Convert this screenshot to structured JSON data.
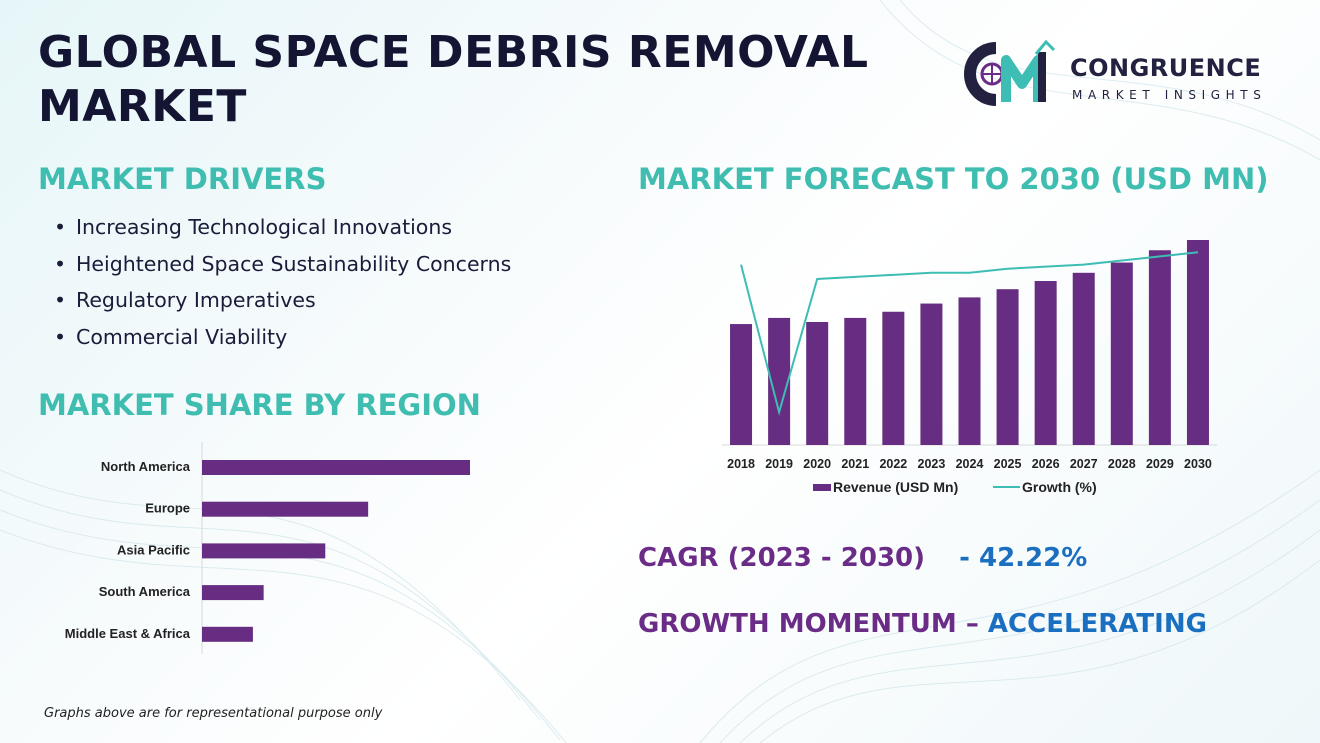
{
  "title": "GLOBAL SPACE DEBRIS REMOVAL MARKET",
  "logo": {
    "name": "CONGRUENCE",
    "subtitle": "MARKET INSIGHTS"
  },
  "drivers": {
    "heading": "MARKET DRIVERS",
    "items": [
      "Increasing Technological Innovations",
      "Heightened Space Sustainability Concerns",
      "Regulatory Imperatives",
      "Commercial Viability"
    ]
  },
  "kpis": {
    "cagr_label": "CAGR (2023 - 2030)",
    "cagr_value": "- 42.22%",
    "momentum_label": "GROWTH MOMENTUM –",
    "momentum_value": "ACCELERATING"
  },
  "footnote": "Graphs above are for representational purpose only",
  "colors": {
    "bar": "#662d82",
    "line": "#3dbdb4",
    "heading": "#3fbdb0",
    "kpi_label": "#6a2c86",
    "kpi_value": "#1b6fc0"
  },
  "chart_data": [
    {
      "type": "bar",
      "orientation": "horizontal",
      "title": "MARKET SHARE BY REGION",
      "categories": [
        "North America",
        "Europe",
        "Asia Pacific",
        "South America",
        "Middle East & Africa"
      ],
      "values": [
        100,
        62,
        46,
        23,
        19
      ]
    },
    {
      "type": "bar+line",
      "title": "MARKET FORECAST TO 2030 (USD MN)",
      "categories": [
        "2018",
        "2019",
        "2020",
        "2021",
        "2022",
        "2023",
        "2024",
        "2025",
        "2026",
        "2027",
        "2028",
        "2029",
        "2030"
      ],
      "series": [
        {
          "name": "Revenue (USD Mn)",
          "type": "bar",
          "values": [
            59,
            62,
            60,
            62,
            65,
            69,
            72,
            76,
            80,
            84,
            89,
            95,
            100
          ]
        },
        {
          "name": "Growth (%)",
          "type": "line",
          "values": [
            88,
            16,
            81,
            82,
            83,
            84,
            84,
            86,
            87,
            88,
            90,
            92,
            94
          ]
        }
      ],
      "legend": "bottom"
    }
  ]
}
